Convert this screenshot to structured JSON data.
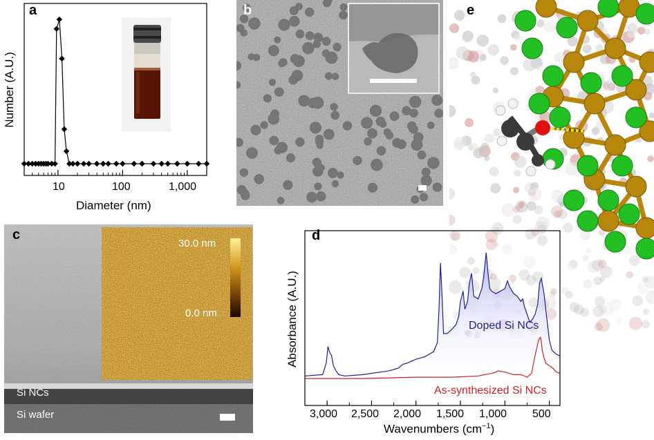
{
  "panels": {
    "a": {
      "letter": "a",
      "ylabel": "Number (A.U.)",
      "xlabel": "Diameter (nm)",
      "xticks": [
        "10",
        "100",
        "1,000"
      ]
    },
    "b": {
      "letter": "b"
    },
    "c": {
      "letter": "c",
      "scale_max": "30.0 nm",
      "scale_min": "0.0 nm",
      "layer_top": "Si NCs",
      "layer_bottom": "Si wafer"
    },
    "d": {
      "letter": "d",
      "ylabel": "Absorbance (A.U.)",
      "xlabel_main": "Wavenumbers (cm",
      "xlabel_sup": "−1",
      "xlabel_end": ")",
      "xticks": [
        "3,000",
        "2,500",
        "2,000",
        "1,500",
        "1,000",
        "500"
      ],
      "legend_doped": "Doped Si NCs",
      "legend_as": "As-synthesized Si NCs"
    },
    "e": {
      "letter": "e"
    }
  },
  "colors": {
    "doped": "#1f1f9a",
    "doped_fill": "#c8c8f0",
    "as_synth": "#d62020",
    "si_atom": "#b8860b",
    "cl_atom": "#22c022",
    "o_atom": "#e01010",
    "c_atom": "#3a3a3a",
    "h_atom": "#f2f2f2"
  },
  "chart_data": [
    {
      "type": "line",
      "panel": "a",
      "xscale": "log",
      "xlim": [
        3,
        2000
      ],
      "xlabel": "Diameter (nm)",
      "ylabel": "Number (A.U.)",
      "series": [
        {
          "x": [
            3,
            3.5,
            4,
            4.5,
            5,
            5.5,
            6,
            6.5,
            7,
            8,
            9,
            9.5,
            10.5,
            11.5,
            12.5,
            13.5,
            15,
            17,
            20,
            25,
            30,
            40,
            50,
            60,
            80,
            100,
            150,
            200,
            300,
            400,
            500,
            700,
            1000,
            1500,
            2000
          ],
          "values": [
            0,
            0,
            0,
            0,
            0,
            0,
            0,
            0,
            0,
            0,
            0,
            0.86,
            0.92,
            0.67,
            0.22,
            0.08,
            0,
            0,
            0,
            0,
            0,
            0,
            0,
            0,
            0,
            0,
            0,
            0,
            0,
            0,
            0,
            0,
            0,
            0,
            0
          ]
        }
      ]
    },
    {
      "type": "line",
      "panel": "d",
      "xlim": [
        3250,
        380
      ],
      "xlabel": "Wavenumbers (cm−1)",
      "ylabel": "Absorbance (A.U.)",
      "series": [
        {
          "name": "Doped Si NCs",
          "x": [
            3250,
            3050,
            3010,
            2990,
            2970,
            2950,
            2930,
            2900,
            2870,
            2800,
            2600,
            2300,
            2200,
            2150,
            2100,
            2000,
            1900,
            1800,
            1760,
            1740,
            1725,
            1710,
            1690,
            1650,
            1600,
            1550,
            1520,
            1500,
            1470,
            1450,
            1420,
            1400,
            1375,
            1350,
            1300,
            1260,
            1240,
            1210,
            1190,
            1170,
            1150,
            1100,
            1050,
            1000,
            970,
            950,
            920,
            900,
            860,
            820,
            800,
            780,
            750,
            720,
            690,
            660,
            630,
            610,
            590,
            560,
            530,
            500,
            470,
            440,
            400,
            380
          ],
          "values": [
            0.02,
            0.03,
            0.12,
            0.25,
            0.2,
            0.18,
            0.1,
            0.06,
            0.03,
            0.02,
            0.03,
            0.06,
            0.08,
            0.11,
            0.12,
            0.15,
            0.17,
            0.21,
            0.28,
            0.55,
            0.9,
            0.7,
            0.35,
            0.35,
            0.38,
            0.42,
            0.48,
            0.6,
            0.68,
            0.54,
            0.6,
            0.74,
            0.82,
            0.64,
            0.62,
            0.7,
            0.78,
            0.98,
            0.82,
            0.7,
            0.68,
            0.66,
            0.68,
            0.7,
            0.76,
            0.72,
            0.68,
            0.66,
            0.64,
            0.6,
            0.62,
            0.56,
            0.5,
            0.44,
            0.46,
            0.5,
            0.58,
            0.74,
            0.78,
            0.66,
            0.48,
            0.3,
            0.22,
            0.2,
            0.18,
            0.18
          ]
        },
        {
          "name": "As-synthesized Si NCs",
          "x": [
            3250,
            2600,
            2000,
            1600,
            1300,
            1150,
            1100,
            1080,
            1000,
            900,
            820,
            780,
            750,
            700,
            660,
            640,
            620,
            600,
            590,
            580,
            560,
            540,
            500,
            460,
            420,
            380
          ],
          "values": [
            0.0,
            0.0,
            0.01,
            0.01,
            0.02,
            0.04,
            0.05,
            0.06,
            0.05,
            0.03,
            0.03,
            0.02,
            0.01,
            0.04,
            0.18,
            0.24,
            0.3,
            0.32,
            0.29,
            0.22,
            0.16,
            0.12,
            0.1,
            0.08,
            0.05,
            0.04
          ]
        }
      ]
    }
  ]
}
